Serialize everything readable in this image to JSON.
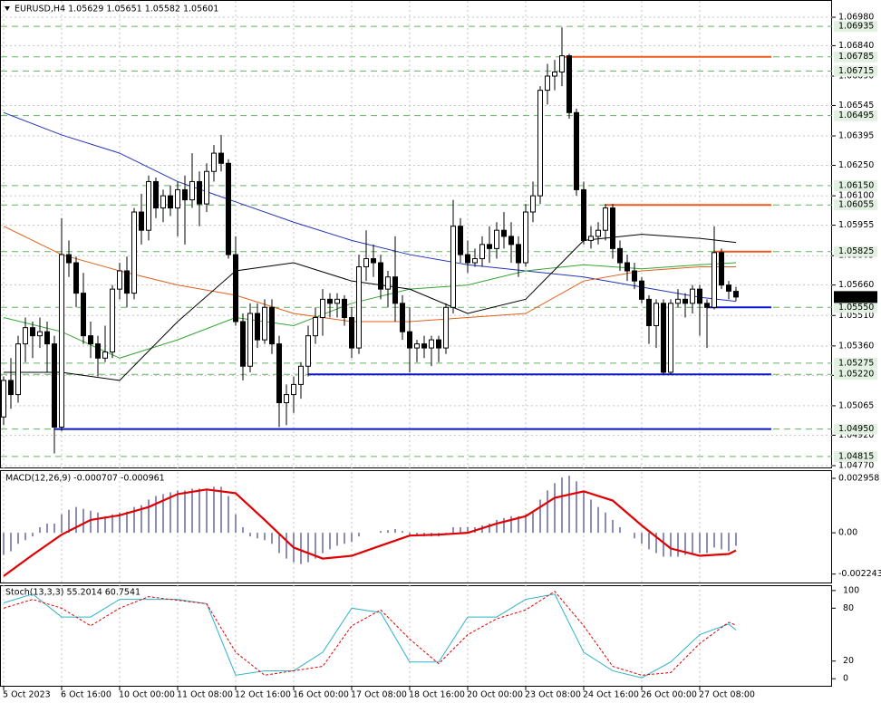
{
  "chart_data": [
    {
      "type": "candlestick",
      "title": "EURUSD,H4  1.05629 1.05651 1.05582 1.05601",
      "categories": [
        "5 Oct 2023",
        null,
        null,
        null,
        null,
        null,
        null,
        null,
        "6 Oct 16:00",
        null,
        null,
        null,
        null,
        null,
        null,
        null,
        "10 Oct 00:00",
        null,
        null,
        null,
        null,
        null,
        null,
        null,
        "11 Oct 08:00",
        null,
        null,
        null,
        null,
        null,
        null,
        null,
        "12 Oct 16:00",
        null,
        null,
        null,
        null,
        null,
        null,
        null,
        "16 Oct 00:00",
        null,
        null,
        null,
        null,
        null,
        null,
        null,
        "17 Oct 08:00",
        null,
        null,
        null,
        null,
        null,
        null,
        null,
        "18 Oct 16:00",
        null,
        null,
        null,
        null,
        null,
        null,
        null,
        "20 Oct 00:00",
        null,
        null,
        null,
        null,
        null,
        null,
        null,
        "23 Oct 08:00",
        null,
        null,
        null,
        null,
        null,
        null,
        null,
        "24 Oct 16:00",
        null,
        null,
        null,
        null,
        null,
        null,
        null,
        "26 Oct 00:00",
        null,
        null,
        null,
        null,
        null,
        null,
        null,
        "27 Oct 08:00",
        null,
        null,
        null,
        null,
        null
      ],
      "open": [
        1.0501,
        1.0519,
        1.0512,
        1.0537,
        1.0545,
        1.0541,
        1.0543,
        1.0537,
        1.0496,
        1.0581,
        1.0577,
        1.0562,
        1.0541,
        1.0537,
        1.053,
        1.0533,
        1.0564,
        1.0573,
        1.0562,
        1.0602,
        1.0593,
        1.0617,
        1.0604,
        1.061,
        1.0604,
        1.0613,
        1.0608,
        1.0617,
        1.0606,
        1.0622,
        1.0631,
        1.0626,
        1.0581,
        1.0548,
        1.0526,
        1.0552,
        1.0539,
        1.0555,
        1.0537,
        1.0508,
        1.0512,
        1.0517,
        1.0526,
        1.0541,
        1.055,
        1.0559,
        1.0557,
        1.0559,
        1.055,
        1.0535,
        1.0575,
        1.0579,
        1.0577,
        1.0564,
        1.057,
        1.0557,
        1.0543,
        1.0535,
        1.0537,
        1.0535,
        1.0539,
        1.0535,
        1.0555,
        1.0595,
        1.0581,
        1.0577,
        1.0579,
        1.0586,
        1.0584,
        1.0593,
        1.059,
        1.0586,
        1.0577,
        1.0602,
        1.061,
        1.0662,
        1.0669,
        1.0671,
        1.0679,
        1.0651,
        1.0613,
        1.0588,
        1.059,
        1.0593,
        1.0604,
        1.0584,
        1.0577,
        1.0573,
        1.0568,
        1.0559,
        1.0546,
        1.0557,
        1.0523,
        1.0557,
        1.0559,
        1.0557,
        1.0564,
        1.0557,
        1.0555,
        1.0582,
        1.0566,
        1.05629
      ],
      "high": [
        1.0521,
        1.053,
        1.0541,
        1.055,
        1.0548,
        1.055,
        1.0548,
        1.0541,
        1.0599,
        1.0588,
        1.058,
        1.0572,
        1.0548,
        1.0541,
        1.0546,
        1.0566,
        1.0577,
        1.058,
        1.0604,
        1.0611,
        1.062,
        1.0619,
        1.0613,
        1.0615,
        1.0617,
        1.062,
        1.0631,
        1.0622,
        1.0626,
        1.0635,
        1.064,
        1.0628,
        1.059,
        1.0552,
        1.0557,
        1.0557,
        1.0559,
        1.0559,
        1.0541,
        1.0517,
        1.0521,
        1.0528,
        1.0546,
        1.0555,
        1.0564,
        1.0562,
        1.0562,
        1.0561,
        1.0555,
        1.0581,
        1.0593,
        1.0586,
        1.0581,
        1.0573,
        1.059,
        1.0561,
        1.0555,
        1.0539,
        1.0541,
        1.0541,
        1.0541,
        1.0557,
        1.0608,
        1.0599,
        1.0588,
        1.0584,
        1.059,
        1.0595,
        1.0597,
        1.0602,
        1.0597,
        1.059,
        1.0606,
        1.0617,
        1.0664,
        1.0675,
        1.0677,
        1.0693,
        1.068,
        1.0653,
        1.0617,
        1.0595,
        1.0597,
        1.0606,
        1.0606,
        1.0588,
        1.0581,
        1.0577,
        1.057,
        1.0561,
        1.0559,
        1.0559,
        1.0559,
        1.0564,
        1.0562,
        1.0566,
        1.0566,
        1.0559,
        1.0595,
        1.0584,
        1.0568,
        1.05651
      ],
      "low": [
        1.0497,
        1.0505,
        1.0508,
        1.0528,
        1.053,
        1.0535,
        1.0523,
        1.0483,
        1.0494,
        1.057,
        1.0555,
        1.0537,
        1.053,
        1.0521,
        1.0528,
        1.053,
        1.0559,
        1.0555,
        1.0559,
        1.0586,
        1.0588,
        1.0599,
        1.0597,
        1.06,
        1.059,
        1.0586,
        1.0604,
        1.0595,
        1.0602,
        1.0617,
        1.0622,
        1.0579,
        1.0546,
        1.0519,
        1.0523,
        1.0535,
        1.0537,
        1.0532,
        1.0496,
        1.0497,
        1.0503,
        1.051,
        1.0521,
        1.0537,
        1.0541,
        1.055,
        1.055,
        1.0546,
        1.053,
        1.0532,
        1.0568,
        1.057,
        1.0559,
        1.0555,
        1.0548,
        1.0539,
        1.0523,
        1.0528,
        1.053,
        1.0526,
        1.0528,
        1.0532,
        1.0552,
        1.0577,
        1.0572,
        1.0575,
        1.0575,
        1.0577,
        1.0579,
        1.0584,
        1.0577,
        1.057,
        1.0575,
        1.0597,
        1.0606,
        1.0655,
        1.0662,
        1.0664,
        1.0648,
        1.061,
        1.0586,
        1.0584,
        1.0586,
        1.0588,
        1.0579,
        1.0573,
        1.0568,
        1.0564,
        1.0557,
        1.0537,
        1.0535,
        1.0522,
        1.0522,
        1.0555,
        1.055,
        1.0552,
        1.0541,
        1.0535,
        1.0554,
        1.0564,
        1.0559,
        1.05582
      ],
      "close": [
        1.0519,
        1.0512,
        1.0537,
        1.0545,
        1.0541,
        1.0543,
        1.0537,
        1.0496,
        1.0581,
        1.0577,
        1.0562,
        1.0541,
        1.0537,
        1.053,
        1.0533,
        1.0564,
        1.0573,
        1.0562,
        1.0602,
        1.0593,
        1.0617,
        1.0604,
        1.061,
        1.0604,
        1.0613,
        1.0608,
        1.0617,
        1.0606,
        1.0622,
        1.0631,
        1.0626,
        1.0581,
        1.0548,
        1.0526,
        1.0552,
        1.0539,
        1.0555,
        1.0537,
        1.0508,
        1.0512,
        1.0517,
        1.0526,
        1.0541,
        1.055,
        1.0559,
        1.0557,
        1.0559,
        1.055,
        1.0535,
        1.0575,
        1.0579,
        1.0577,
        1.0564,
        1.057,
        1.0557,
        1.0543,
        1.0535,
        1.0537,
        1.0535,
        1.0539,
        1.0535,
        1.0555,
        1.0595,
        1.0581,
        1.0577,
        1.0579,
        1.0586,
        1.0584,
        1.0593,
        1.059,
        1.0586,
        1.0577,
        1.0602,
        1.061,
        1.0662,
        1.0669,
        1.0671,
        1.0679,
        1.0651,
        1.0613,
        1.0588,
        1.059,
        1.0593,
        1.0604,
        1.0584,
        1.0577,
        1.0573,
        1.0568,
        1.0559,
        1.0546,
        1.0557,
        1.0523,
        1.0557,
        1.0559,
        1.0557,
        1.0564,
        1.0557,
        1.0555,
        1.0582,
        1.0566,
        1.0563,
        1.05601
      ],
      "ylim": [
        1.04761,
        1.07065
      ],
      "yticks": [
        {
          "value": 1.0698,
          "label": "1.06980"
        },
        {
          "value": 1.0684,
          "label": "1.06840"
        },
        {
          "value": 1.0669,
          "label": "1.06690"
        },
        1.06545,
        1.06395,
        {
          "value": 1.0625,
          "label": "1.06250"
        },
        {
          "value": 1.061,
          "label": "1.06100"
        },
        1.05955,
        1.05805,
        {
          "value": 1.0566,
          "label": "1.05660"
        },
        {
          "value": 1.0551,
          "label": "1.05510"
        },
        {
          "value": 1.0536,
          "label": "1.05360"
        },
        1.05215,
        1.05065,
        {
          "value": 1.0492,
          "label": "1.04920"
        },
        {
          "value": 1.0477,
          "label": "1.04770"
        }
      ],
      "grid": true,
      "price_levels": [
        1.06935,
        1.06785,
        1.06715,
        1.06495,
        {
          "value": 1.0615,
          "label": "1.06150"
        },
        1.06055,
        1.05825,
        {
          "value": 1.0555,
          "label": "1.05550"
        },
        1.05275,
        {
          "value": 1.0522,
          "label": "1.05220"
        },
        {
          "value": 1.0495,
          "label": "1.04950"
        },
        1.04815
      ],
      "level_color": "#5cb85c",
      "current_price": 1.05601,
      "segments": [
        {
          "value": 1.06785,
          "start": 77,
          "color": "#f0581e"
        },
        {
          "value": 1.06055,
          "start": 83,
          "color": "#f0581e"
        },
        {
          "value": 1.05825,
          "start": 98,
          "color": "#f0581e"
        },
        {
          "value": 1.0555,
          "start": 97,
          "color": "#0a14c8"
        },
        {
          "value": 1.0522,
          "start": 42,
          "color": "#0a14c8"
        },
        {
          "value": 1.0495,
          "start": 7,
          "color": "#0a14c8"
        }
      ],
      "lines": {
        "x": [
          0,
          8,
          16,
          24,
          32,
          40,
          48,
          56,
          64,
          72,
          80,
          88,
          96,
          101
        ],
        "series": [
          {
            "color": "#2433b8",
            "values": [
              1.0651,
              1.064,
              1.0631,
              1.0617,
              1.0607,
              1.0597,
              1.0588,
              1.0581,
              1.0576,
              1.0573,
              1.057,
              1.0565,
              1.056,
              1.0558
            ]
          },
          {
            "color": "#e0601c",
            "values": [
              1.0595,
              1.0581,
              1.0573,
              1.0566,
              1.0561,
              1.0552,
              1.0548,
              1.0548,
              1.055,
              1.0552,
              1.0568,
              1.0573,
              1.0575,
              1.0575
            ]
          },
          {
            "color": "#35a535",
            "values": [
              1.055,
              1.0543,
              1.053,
              1.0539,
              1.055,
              1.0546,
              1.0557,
              1.0564,
              1.0566,
              1.0573,
              1.0576,
              1.0574,
              1.0576,
              1.0577
            ]
          },
          {
            "color": "#000000",
            "values": [
              1.0523,
              1.0523,
              1.0519,
              1.0548,
              1.0573,
              1.0577,
              1.0568,
              1.0564,
              1.0552,
              1.0559,
              1.0588,
              1.0591,
              1.0589,
              1.0587
            ]
          }
        ]
      }
    },
    {
      "type": "macd",
      "title": "MACD(12,26,9) -0.000707 -0.000961",
      "values": [
        -0.0012,
        -0.001,
        -0.0006,
        -0.0004,
        -0.0002,
        0.0003,
        0.0005,
        0.0005,
        0.001,
        0.00125,
        0.0014,
        0.0013,
        0.0012,
        0.0011,
        0.0009,
        0.001,
        0.0011,
        0.00115,
        0.0014,
        0.0015,
        0.0018,
        0.002,
        0.0021,
        0.0022,
        0.0023,
        0.0023,
        0.0024,
        0.0024,
        0.0024,
        0.0025,
        0.0025,
        0.002,
        0.001,
        0.0003,
        -0.0002,
        -0.0003,
        -0.0004,
        -0.0006,
        -0.0011,
        -0.0014,
        -0.0016,
        -0.0017,
        -0.0016,
        -0.0014,
        -0.0011,
        -0.0009,
        -0.0007,
        -0.0006,
        -0.0005,
        -0.0002,
        0,
        0,
        0.0001,
        0.00015,
        0.0002,
        0.0001,
        -0.0001,
        -0.0002,
        -0.0002,
        -0.0002,
        -0.0002,
        -0.0001,
        0.0003,
        0.0003,
        0.0003,
        0.0003,
        0.0004,
        0.0005,
        0.0007,
        0.0008,
        0.0009,
        0.0009,
        0.001,
        0.0012,
        0.0018,
        0.0023,
        0.0027,
        0.003,
        0.0031,
        0.0028,
        0.0023,
        0.0018,
        0.0014,
        0.0011,
        0.0007,
        0.0003,
        0,
        -0.0003,
        -0.0006,
        -0.0009,
        -0.0011,
        -0.0013,
        -0.0013,
        -0.0013,
        -0.0012,
        -0.0011,
        -0.0011,
        -0.0011,
        -0.0008,
        -0.0009,
        -0.001,
        -0.000707
      ],
      "color": "#1a1a80",
      "signal": {
        "color": "#e00000",
        "x": [
          0,
          4,
          8,
          12,
          16,
          20,
          24,
          28,
          32,
          36,
          40,
          44,
          48,
          52,
          56,
          60,
          64,
          68,
          72,
          76,
          80,
          84,
          88,
          92,
          96,
          100,
          101
        ],
        "values": [
          -0.00235,
          -0.0012,
          -0.0001,
          0.0007,
          0.00095,
          0.0014,
          0.0021,
          0.00235,
          0.00215,
          0.0007,
          -0.0008,
          -0.0014,
          -0.00125,
          -0.0007,
          -0.00015,
          -0.0001,
          0,
          0.0005,
          0.0009,
          0.0019,
          0.00225,
          0.00175,
          0.0004,
          -0.00085,
          -0.00125,
          -0.00115,
          -0.000961
        ]
      },
      "ylim": [
        -0.0027,
        0.0034
      ],
      "yticks": [
        0.002958,
        {
          "value": 0,
          "label": "0.00"
        },
        -0.002243
      ]
    },
    {
      "type": "stoch",
      "title": "Stoch(13,3,3) 55.2014 60.7541",
      "x": [
        0,
        4,
        8,
        12,
        16,
        20,
        24,
        28,
        32,
        36,
        40,
        44,
        48,
        52,
        56,
        60,
        64,
        68,
        72,
        76,
        80,
        84,
        88,
        92,
        96,
        100,
        101
      ],
      "series": [
        {
          "color": "#2fb3c8",
          "style": "solid",
          "values": [
            86,
            96,
            70,
            70,
            90,
            90,
            90,
            85,
            4,
            9,
            9,
            30,
            80,
            75,
            19,
            19,
            70,
            70,
            90,
            96,
            30,
            9,
            1,
            19,
            50,
            62,
            55.2014
          ]
        },
        {
          "color": "#e00000",
          "style": "dashed",
          "values": [
            80,
            90,
            80,
            60,
            80,
            93,
            89,
            85,
            30,
            4,
            9,
            14,
            60,
            78,
            45,
            17,
            50,
            68,
            78,
            99,
            60,
            14,
            4,
            7,
            40,
            64,
            60.7541
          ]
        }
      ],
      "ylim": [
        -8,
        105
      ],
      "yticks": [
        100,
        80,
        20,
        0
      ]
    }
  ]
}
